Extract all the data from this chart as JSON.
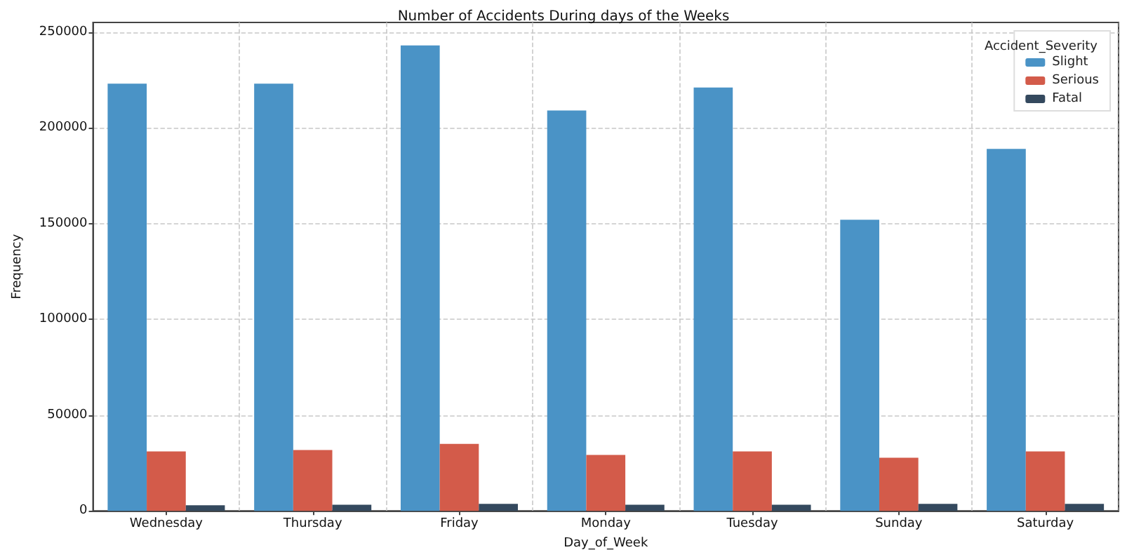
{
  "chart_data": {
    "type": "bar",
    "title": "Number of Accidents During days of the Weeks",
    "xlabel": "Day_of_Week",
    "ylabel": "Frequency",
    "legend_title": "Accident_Severity",
    "categories": [
      "Wednesday",
      "Thursday",
      "Friday",
      "Monday",
      "Tuesday",
      "Sunday",
      "Saturday"
    ],
    "series": [
      {
        "name": "Slight",
        "color": "#4a93c6",
        "values": [
          223000,
          223000,
          243000,
          209000,
          221000,
          152000,
          189000
        ]
      },
      {
        "name": "Serious",
        "color": "#d35b4a",
        "values": [
          31000,
          31800,
          35000,
          29200,
          31000,
          27700,
          31000
        ]
      },
      {
        "name": "Fatal",
        "color": "#34495e",
        "values": [
          2900,
          3200,
          3600,
          3200,
          3200,
          3600,
          3600
        ]
      }
    ],
    "ylim": [
      0,
      255000
    ],
    "yticks": [
      0,
      50000,
      100000,
      150000,
      200000,
      250000
    ],
    "grid": true,
    "legend": "top right"
  }
}
